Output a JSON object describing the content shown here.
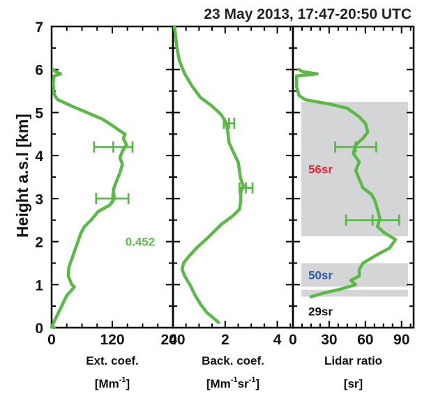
{
  "chart_data": {
    "type": "line",
    "title": "23 May 2013, 17:47-20:50 UTC",
    "ylabel": "Height a.s.l [km]",
    "ylim": [
      0,
      7
    ],
    "yticks": [
      "0",
      "1",
      "2",
      "3",
      "4",
      "5",
      "6",
      "7"
    ],
    "grid": false,
    "panels": [
      {
        "xlabel": "Ext. coef.",
        "xunit": "[Mm",
        "xunit_sup": "-1",
        "xunit_end": "]",
        "xlim": [
          0,
          240
        ],
        "xticks": [
          "0",
          "120",
          "240"
        ],
        "xtick_values": [
          0,
          120,
          240
        ],
        "xtick_labels": [
          "0",
          "120",
          "240"
        ],
        "color": "#5bb947",
        "annotation": {
          "text": "0.452",
          "color": "#5bb947",
          "x": 120,
          "y": 2.0
        },
        "profile": [
          [
            5,
            0.0
          ],
          [
            0,
            0.02
          ],
          [
            30,
            0.75
          ],
          [
            38,
            0.85
          ],
          [
            45,
            0.95
          ],
          [
            40,
            1.0
          ],
          [
            33,
            1.2
          ],
          [
            34,
            1.4
          ],
          [
            40,
            1.6
          ],
          [
            46,
            1.8
          ],
          [
            52,
            2.0
          ],
          [
            58,
            2.2
          ],
          [
            65,
            2.35
          ],
          [
            78,
            2.5
          ],
          [
            92,
            2.7
          ],
          [
            115,
            2.85
          ],
          [
            124,
            3.0
          ],
          [
            122,
            3.2
          ],
          [
            128,
            3.4
          ],
          [
            135,
            3.6
          ],
          [
            140,
            3.8
          ],
          [
            135,
            3.95
          ],
          [
            140,
            4.1
          ],
          [
            148,
            4.25
          ],
          [
            142,
            4.4
          ],
          [
            145,
            4.5
          ],
          [
            132,
            4.6
          ],
          [
            120,
            4.7
          ],
          [
            100,
            4.85
          ],
          [
            70,
            5.0
          ],
          [
            40,
            5.15
          ],
          [
            12,
            5.3
          ],
          [
            6,
            5.4
          ],
          [
            4,
            5.5
          ],
          [
            3,
            5.7
          ],
          [
            5,
            5.85
          ],
          [
            18,
            5.9
          ],
          [
            8,
            5.95
          ],
          [
            3,
            6.0
          ]
        ],
        "errorbars": [
          {
            "x": 122,
            "y": 4.2,
            "xerr": 38
          },
          {
            "x": 120,
            "y": 3.0,
            "xerr": 32
          }
        ]
      },
      {
        "xlabel": "Back. coef.",
        "xunit": "[Mm",
        "xunit_sup": "-1",
        "xunit_mid": "sr",
        "xunit_sup2": "-1",
        "xunit_end": "]",
        "xlim": [
          0,
          4.6
        ],
        "xticks": [
          "0",
          "2",
          "4"
        ],
        "xtick_values": [
          0,
          2,
          4
        ],
        "xtick_labels": [
          "0",
          "2",
          "4"
        ],
        "color": "#5bb947",
        "profile": [
          [
            1.75,
            0.12
          ],
          [
            1.6,
            0.2
          ],
          [
            1.3,
            0.35
          ],
          [
            1.05,
            0.55
          ],
          [
            0.85,
            0.75
          ],
          [
            0.65,
            1.0
          ],
          [
            0.45,
            1.2
          ],
          [
            0.35,
            1.35
          ],
          [
            0.4,
            1.5
          ],
          [
            0.6,
            1.65
          ],
          [
            0.9,
            1.85
          ],
          [
            1.35,
            2.1
          ],
          [
            1.85,
            2.4
          ],
          [
            2.3,
            2.6
          ],
          [
            2.55,
            2.75
          ],
          [
            2.6,
            2.95
          ],
          [
            2.6,
            3.15
          ],
          [
            2.7,
            3.3
          ],
          [
            2.6,
            3.45
          ],
          [
            2.55,
            3.65
          ],
          [
            2.5,
            3.85
          ],
          [
            2.3,
            4.1
          ],
          [
            2.15,
            4.3
          ],
          [
            2.1,
            4.55
          ],
          [
            2.05,
            4.75
          ],
          [
            1.85,
            4.95
          ],
          [
            1.5,
            5.15
          ],
          [
            1.05,
            5.35
          ],
          [
            0.75,
            5.6
          ],
          [
            0.45,
            5.9
          ],
          [
            0.25,
            6.2
          ],
          [
            0.15,
            6.5
          ],
          [
            0.1,
            6.8
          ],
          [
            0.05,
            7.0
          ]
        ],
        "errorbars": [
          {
            "x": 2.15,
            "y": 4.75,
            "xerr": 0.2
          },
          {
            "x": 2.8,
            "y": 3.25,
            "xerr": 0.25
          }
        ]
      },
      {
        "xlabel": "Lidar ratio",
        "xunit": "[sr]",
        "xlim": [
          0,
          100
        ],
        "xticks": [
          "0",
          "30",
          "60",
          "90"
        ],
        "xtick_values": [
          0,
          30,
          60,
          90
        ],
        "xtick_labels": [
          "0",
          "30",
          "60",
          "90"
        ],
        "color": "#5bb947",
        "profile": [
          [
            15,
            0.72
          ],
          [
            25,
            0.8
          ],
          [
            40,
            0.9
          ],
          [
            52,
            1.0
          ],
          [
            48,
            1.1
          ],
          [
            55,
            1.2
          ],
          [
            55,
            1.35
          ],
          [
            58,
            1.5
          ],
          [
            70,
            1.7
          ],
          [
            80,
            1.85
          ],
          [
            85,
            2.05
          ],
          [
            76,
            2.2
          ],
          [
            70,
            2.35
          ],
          [
            72,
            2.55
          ],
          [
            70,
            2.75
          ],
          [
            68,
            2.95
          ],
          [
            65,
            3.1
          ],
          [
            58,
            3.25
          ],
          [
            55,
            3.45
          ],
          [
            52,
            3.65
          ],
          [
            55,
            3.85
          ],
          [
            50,
            4.05
          ],
          [
            52,
            4.25
          ],
          [
            58,
            4.4
          ],
          [
            62,
            4.55
          ],
          [
            60,
            4.75
          ],
          [
            55,
            4.9
          ],
          [
            45,
            5.1
          ],
          [
            30,
            5.2
          ],
          [
            10,
            5.3
          ],
          [
            5,
            5.4
          ],
          [
            3,
            5.6
          ],
          [
            3,
            5.85
          ],
          [
            20,
            5.9
          ],
          [
            8,
            5.95
          ],
          [
            5,
            6.0
          ]
        ],
        "errorbars": [
          {
            "x": 52,
            "y": 4.2,
            "xerr": 17
          },
          {
            "x": 66,
            "y": 2.5,
            "xerr": 22
          }
        ],
        "bands": [
          {
            "label": "56sr",
            "color": "#e8262f",
            "y0": 2.12,
            "y1": 5.25
          },
          {
            "label": "50sr",
            "color": "#2a5fae",
            "y0": 0.95,
            "y1": 1.5
          },
          {
            "label": "29sr",
            "color": "#111111",
            "y0": 0.72,
            "y1": 0.88
          }
        ]
      }
    ]
  }
}
